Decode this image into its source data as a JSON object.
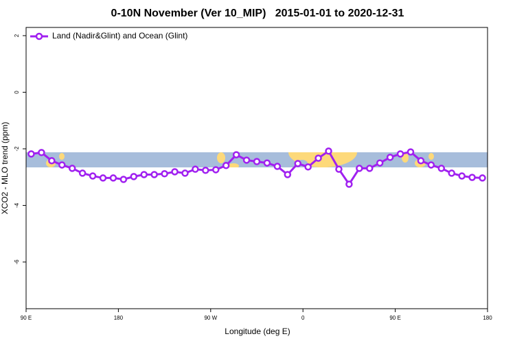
{
  "chart_data": {
    "type": "line",
    "title": "0-10N November (Ver 10_MIP)   2015-01-01 to 2020-12-31",
    "x_label": "Longitude (deg E)",
    "y_label": "XCO2 - MLO trend (ppm)",
    "x": [
      95,
      105,
      115,
      125,
      135,
      145,
      155,
      165,
      175,
      185,
      195,
      205,
      215,
      225,
      235,
      245,
      255,
      265,
      275,
      285,
      295,
      305,
      315,
      325,
      335,
      345,
      355,
      365,
      375,
      385,
      395,
      405,
      415,
      425,
      435,
      445,
      455,
      465,
      475,
      485,
      495,
      505,
      515,
      525,
      535
    ],
    "series": [
      {
        "name": "Land (Nadir&Glint) and Ocean (Glint)",
        "color": "#a020f0",
        "values": [
          -2.18,
          -2.13,
          -2.42,
          -2.57,
          -2.69,
          -2.86,
          -2.96,
          -3.03,
          -3.03,
          -3.08,
          -2.98,
          -2.91,
          -2.91,
          -2.88,
          -2.81,
          -2.86,
          -2.72,
          -2.76,
          -2.74,
          -2.59,
          -2.21,
          -2.4,
          -2.45,
          -2.5,
          -2.62,
          -2.91,
          -2.52,
          -2.64,
          -2.33,
          -2.08,
          -2.72,
          -3.25,
          -2.69,
          -2.69,
          -2.5,
          -2.3,
          -2.18,
          -2.11,
          -2.42,
          -2.57,
          -2.69,
          -2.86,
          -2.96,
          -3.01,
          -3.03
        ]
      }
    ],
    "xlim": [
      90,
      540
    ],
    "ylim": [
      -7.65,
      2.29
    ],
    "xticks": [
      {
        "value": 90,
        "label": "90 E"
      },
      180,
      {
        "value": 270,
        "label": "90 W"
      },
      {
        "value": 360,
        "label": "0"
      },
      {
        "value": 450,
        "label": "90 E"
      },
      {
        "value": 540,
        "label": "180"
      }
    ],
    "yticks": [
      2,
      0,
      -2,
      -4,
      -6
    ],
    "legend": "top-left"
  }
}
